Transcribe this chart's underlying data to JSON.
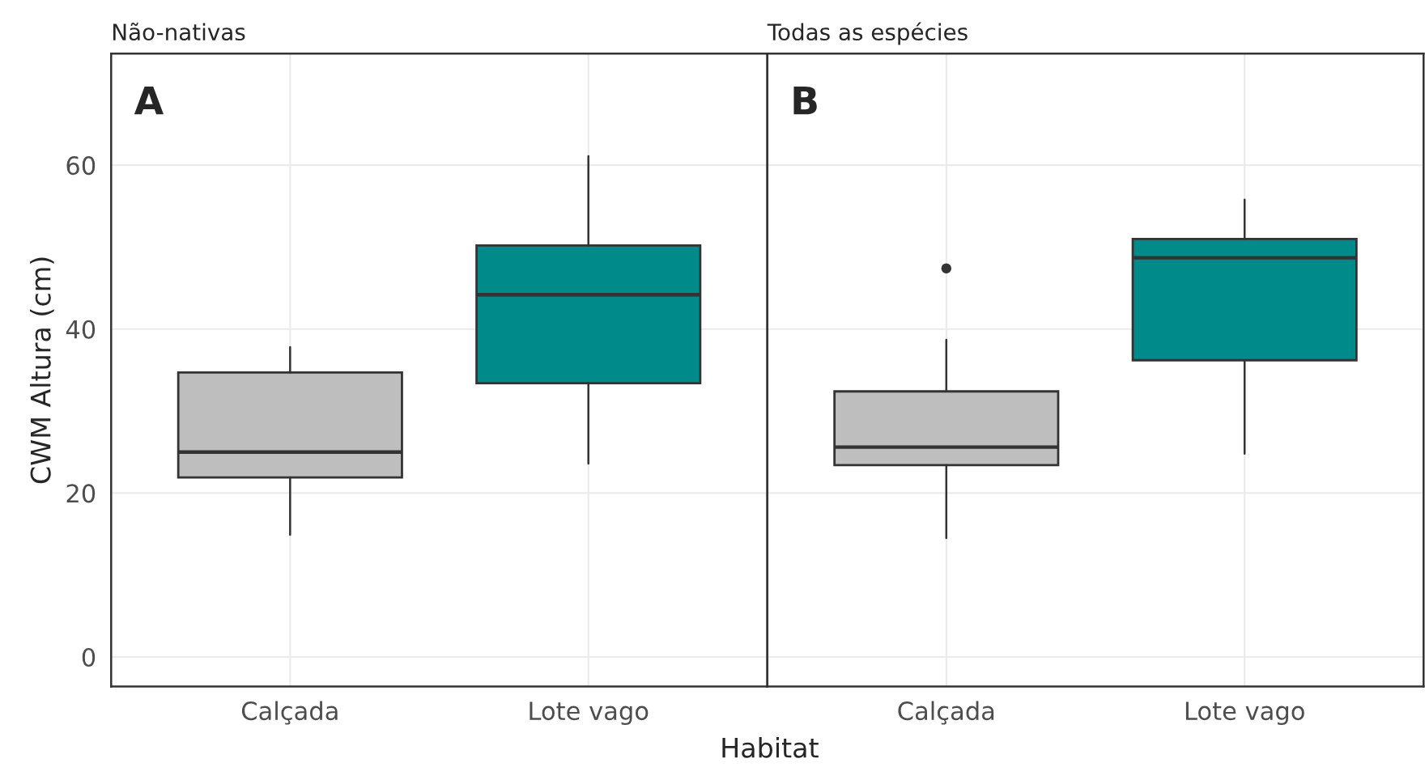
{
  "chart_data": [
    {
      "type": "box",
      "title": "Não-nativas",
      "ylabel": "CWM Altura (cm)",
      "xlabel": "Habitat",
      "categories": [
        "Calçada",
        "Lote vago"
      ],
      "boxes": [
        {
          "low": 14.9,
          "q1": 21.9,
          "median": 25.0,
          "q3": 34.7,
          "high": 37.8
        },
        {
          "low": 23.6,
          "q1": 33.4,
          "median": 44.2,
          "q3": 50.2,
          "high": 61.1
        }
      ],
      "colors": [
        "#bebebe",
        "#008b8b"
      ],
      "ylim": [
        -3.6,
        73.6
      ],
      "yticks": [
        0,
        20,
        40,
        60
      ],
      "grid": true,
      "annotations": [
        "A"
      ]
    },
    {
      "type": "box",
      "title": "Todas as espécies",
      "categories": [
        "Calçada",
        "Lote vago"
      ],
      "boxes": [
        {
          "low": 14.5,
          "q1": 23.4,
          "median": 25.6,
          "q3": 32.4,
          "high": 38.7,
          "outliers": [
            47.4
          ]
        },
        {
          "low": 24.8,
          "q1": 36.2,
          "median": 48.7,
          "q3": 51.0,
          "high": 55.8
        }
      ],
      "colors": [
        "#bebebe",
        "#008b8b"
      ],
      "ylim": [
        -3.6,
        73.6
      ],
      "yticks": [
        0,
        20,
        40,
        60
      ],
      "grid": true,
      "tick_labels": "x",
      "annotations": [
        "B"
      ]
    }
  ]
}
